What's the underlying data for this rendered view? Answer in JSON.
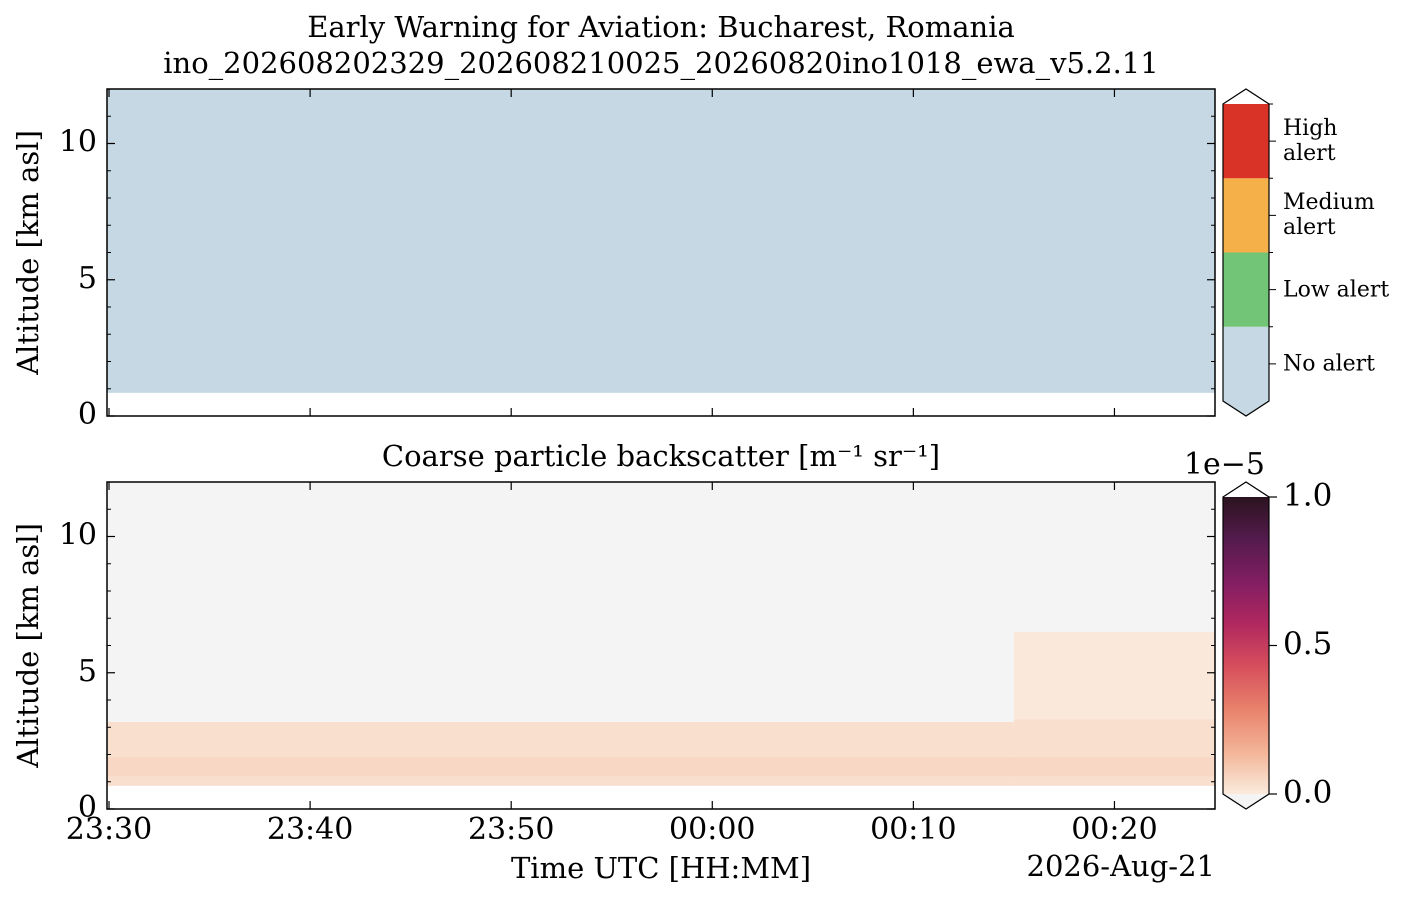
{
  "chart_data": [
    {
      "type": "heatmap",
      "title": "Early Warning for Aviation: Bucharest, Romania",
      "subtitle": "ino_202608202329_202608210025_20260820ino1018_ewa_v5.2.11",
      "ylabel": "Altitude [km asl]",
      "xlim": [
        -0.1,
        55
      ],
      "ylim": [
        0,
        12
      ],
      "xticks": [
        0,
        10,
        20,
        30,
        40,
        50
      ],
      "yticks": [
        0,
        5,
        10
      ],
      "minor_yticks": [
        1,
        2,
        3,
        4,
        6,
        7,
        8,
        9,
        11,
        12
      ],
      "blocks": [
        {
          "x0": -0.1,
          "x1": 55,
          "y0": 0.85,
          "y1": 12,
          "level": 0
        }
      ],
      "colorbar": {
        "kind": "categorical",
        "under_color": "#c5d8e3",
        "over_color": "#ffffff",
        "levels": [
          {
            "label": "No alert",
            "color": "#c5d8e3"
          },
          {
            "label": "Low alert",
            "color": "#72c576"
          },
          {
            "label": "Medium alert",
            "color": "#f5b04a"
          },
          {
            "label": "High alert",
            "color": "#d93226"
          }
        ]
      }
    },
    {
      "type": "heatmap",
      "title": "Coarse particle backscatter [m⁻¹ sr⁻¹]",
      "ylabel": "Altitude [km asl]",
      "xlabel": "Time UTC [HH:MM]",
      "date_label": "2026-Aug-21",
      "xlim": [
        -0.1,
        55
      ],
      "ylim": [
        0,
        12
      ],
      "xticks": [
        {
          "value": 0,
          "label": "23:30"
        },
        {
          "value": 10,
          "label": "23:40"
        },
        {
          "value": 20,
          "label": "23:50"
        },
        {
          "value": 30,
          "label": "00:00"
        },
        {
          "value": 40,
          "label": "00:10"
        },
        {
          "value": 50,
          "label": "00:20"
        }
      ],
      "yticks": [
        0,
        5,
        10
      ],
      "minor_yticks": [
        1,
        2,
        3,
        4,
        6,
        7,
        8,
        9,
        11,
        12
      ],
      "blocks": [
        {
          "x0": -0.1,
          "x1": 45,
          "y0": 0.85,
          "y1": 3.2,
          "value": 0.03
        },
        {
          "x0": -0.1,
          "x1": 45,
          "y0": 1.2,
          "y1": 1.9,
          "value": 0.05
        },
        {
          "x0": 45,
          "x1": 55,
          "y0": 0.85,
          "y1": 3.3,
          "value": 0.03
        },
        {
          "x0": 45,
          "x1": 55,
          "y0": 1.2,
          "y1": 1.9,
          "value": 0.05
        },
        {
          "x0": 45,
          "x1": 55,
          "y0": 3.3,
          "y1": 6.5,
          "value": 0.005
        },
        {
          "x0": -0.1,
          "x1": 45,
          "y0": 3.2,
          "y1": 12,
          "value": -0.05
        },
        {
          "x0": 45,
          "x1": 55,
          "y0": 6.5,
          "y1": 12,
          "value": -0.05
        }
      ],
      "colorbar": {
        "kind": "continuous",
        "clim": [
          0,
          1
        ],
        "offset_label": "1e−5",
        "ticks": [
          {
            "value": 0,
            "label": "0.0"
          },
          0.5,
          {
            "value": 1,
            "label": "1.0"
          }
        ],
        "colormap": [
          "#faebdd",
          "#f3b497",
          "#e8826c",
          "#d64f5c",
          "#b1285f",
          "#821e62",
          "#541b4d",
          "#2c1320"
        ],
        "under_color": "#f4f4f4",
        "over_color": "#ffffff"
      }
    }
  ]
}
